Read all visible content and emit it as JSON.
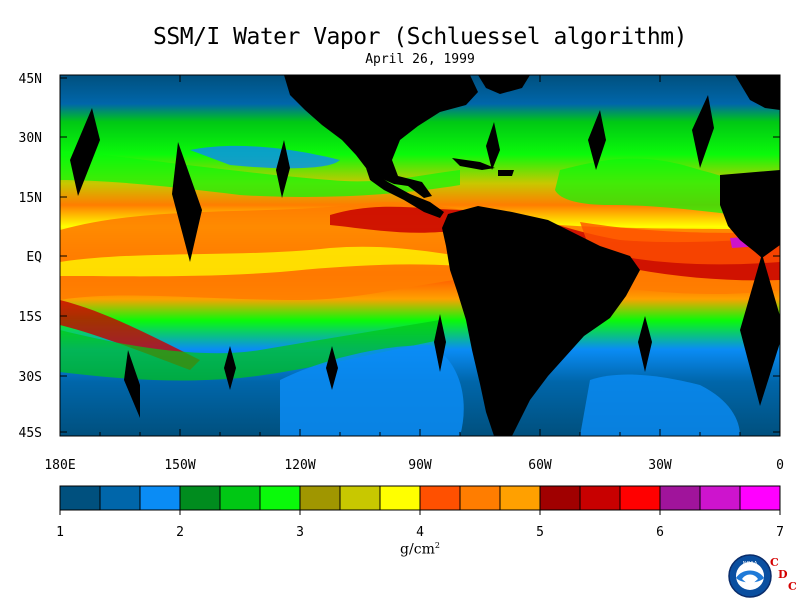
{
  "title": "SSM/I Water Vapor (Schluessel algorithm)",
  "subtitle": "April 26, 1999",
  "lat_labels": [
    "45N",
    "30N",
    "15N",
    "EQ",
    "15S",
    "30S",
    "45S"
  ],
  "lon_labels": [
    "180E",
    "150W",
    "120W",
    "90W",
    "60W",
    "30W",
    "0"
  ],
  "colorbar": {
    "ticks": [
      "1",
      "2",
      "3",
      "4",
      "5",
      "6",
      "7"
    ],
    "unit": "g/cm",
    "unit_sup": "2",
    "colors": [
      "#00507e",
      "#0066aa",
      "#0a8cf5",
      "#008c1e",
      "#00c814",
      "#0afa0a",
      "#a09600",
      "#c8c800",
      "#ffff00",
      "#ff5000",
      "#ff7d00",
      "#ffa000",
      "#a00000",
      "#c80000",
      "#ff0000",
      "#a0149b",
      "#cd14cd",
      "#ff00ff"
    ]
  },
  "logo": {
    "text": "NOAA",
    "letters": [
      "C",
      "D",
      "C"
    ]
  }
}
